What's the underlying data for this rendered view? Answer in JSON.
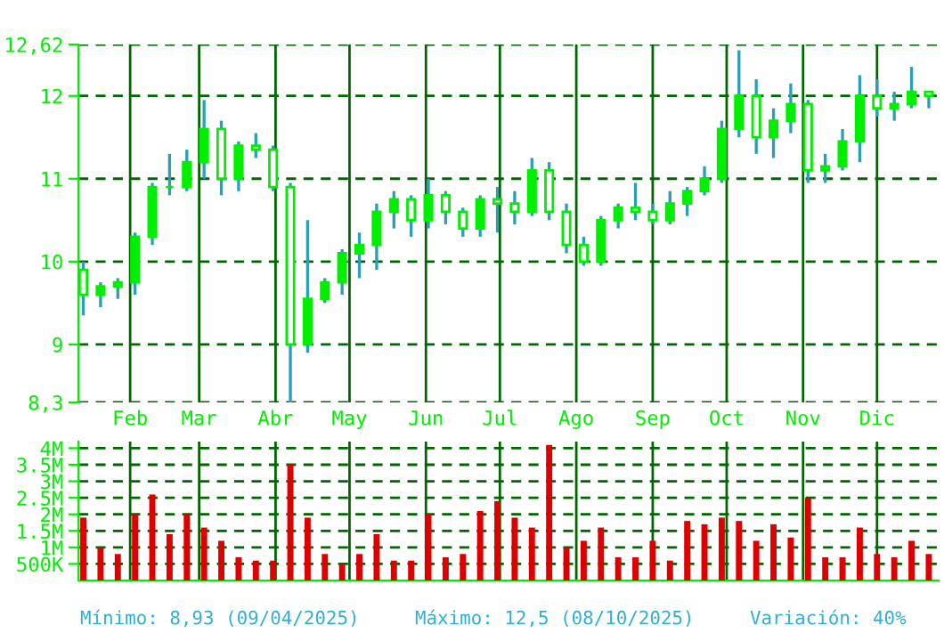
{
  "chart_data": [
    {
      "type": "candlestick",
      "color": "#00ee00",
      "x": [
        "2025-01-13",
        "2025-01-20",
        "2025-01-27",
        "2025-02-03",
        "2025-02-10",
        "2025-02-17",
        "2025-02-24",
        "2025-03-03",
        "2025-03-10",
        "2025-03-17",
        "2025-03-24",
        "2025-03-31",
        "2025-04-07",
        "2025-04-14",
        "2025-04-21",
        "2025-04-28",
        "2025-05-05",
        "2025-05-12",
        "2025-05-19",
        "2025-05-26",
        "2025-06-02",
        "2025-06-09",
        "2025-06-16",
        "2025-06-23",
        "2025-06-30",
        "2025-07-07",
        "2025-07-14",
        "2025-07-21",
        "2025-07-28",
        "2025-08-04",
        "2025-08-11",
        "2025-08-18",
        "2025-08-25",
        "2025-09-01",
        "2025-09-08",
        "2025-09-15",
        "2025-09-22",
        "2025-09-29",
        "2025-10-06",
        "2025-10-13",
        "2025-10-20",
        "2025-10-27",
        "2025-11-03",
        "2025-11-10",
        "2025-11-17",
        "2025-11-24",
        "2025-12-01",
        "2025-12-08",
        "2025-12-15",
        "2025-12-22"
      ],
      "ohlc": [
        [
          9.9,
          10.0,
          9.35,
          9.6
        ],
        [
          9.6,
          9.75,
          9.45,
          9.7
        ],
        [
          9.7,
          9.8,
          9.55,
          9.75
        ],
        [
          9.75,
          10.35,
          9.6,
          10.3
        ],
        [
          10.3,
          10.95,
          10.2,
          10.9
        ],
        [
          10.9,
          11.3,
          10.8,
          10.9
        ],
        [
          10.9,
          11.35,
          10.85,
          11.2
        ],
        [
          11.2,
          11.95,
          11.0,
          11.6
        ],
        [
          11.6,
          11.7,
          10.8,
          11.0
        ],
        [
          11.0,
          11.45,
          10.85,
          11.4
        ],
        [
          11.4,
          11.55,
          11.25,
          11.35
        ],
        [
          11.35,
          11.4,
          10.85,
          10.9
        ],
        [
          10.9,
          10.95,
          8.3,
          9.0
        ],
        [
          9.0,
          10.5,
          8.9,
          9.55
        ],
        [
          9.55,
          9.8,
          9.5,
          9.75
        ],
        [
          9.75,
          10.15,
          9.6,
          10.1
        ],
        [
          10.1,
          10.35,
          9.8,
          10.2
        ],
        [
          10.2,
          10.7,
          9.9,
          10.6
        ],
        [
          10.6,
          10.85,
          10.4,
          10.75
        ],
        [
          10.75,
          10.8,
          10.3,
          10.5
        ],
        [
          10.5,
          11.0,
          10.4,
          10.8
        ],
        [
          10.8,
          10.85,
          10.45,
          10.6
        ],
        [
          10.6,
          10.65,
          10.3,
          10.4
        ],
        [
          10.4,
          10.8,
          10.3,
          10.75
        ],
        [
          10.75,
          10.9,
          10.35,
          10.7
        ],
        [
          10.7,
          10.85,
          10.45,
          10.6
        ],
        [
          10.6,
          11.25,
          10.55,
          11.1
        ],
        [
          11.1,
          11.2,
          10.5,
          10.6
        ],
        [
          10.6,
          10.7,
          10.1,
          10.2
        ],
        [
          10.2,
          10.3,
          9.95,
          10.0
        ],
        [
          10.0,
          10.55,
          9.95,
          10.5
        ],
        [
          10.5,
          10.7,
          10.4,
          10.65
        ],
        [
          10.65,
          10.95,
          10.5,
          10.6
        ],
        [
          10.6,
          10.7,
          10.45,
          10.5
        ],
        [
          10.5,
          10.85,
          10.45,
          10.7
        ],
        [
          10.7,
          10.9,
          10.55,
          10.85
        ],
        [
          10.85,
          11.15,
          10.8,
          11.0
        ],
        [
          11.0,
          11.7,
          10.95,
          11.6
        ],
        [
          11.6,
          12.55,
          11.5,
          12.0
        ],
        [
          12.0,
          12.2,
          11.3,
          11.5
        ],
        [
          11.5,
          11.85,
          11.25,
          11.7
        ],
        [
          11.7,
          12.15,
          11.55,
          11.9
        ],
        [
          11.9,
          11.95,
          10.95,
          11.1
        ],
        [
          11.1,
          11.3,
          10.95,
          11.15
        ],
        [
          11.15,
          11.6,
          11.1,
          11.45
        ],
        [
          11.45,
          12.25,
          11.2,
          12.0
        ],
        [
          12.0,
          12.2,
          11.75,
          11.85
        ],
        [
          11.85,
          12.05,
          11.7,
          11.9
        ],
        [
          11.9,
          12.35,
          11.85,
          12.05
        ],
        [
          12.05,
          12.05,
          11.85,
          12.0
        ]
      ],
      "xlim": [
        "2025-01-11",
        "2025-12-26"
      ],
      "xticks": [
        {
          "value": "2025-02-01",
          "label": "Feb"
        },
        {
          "value": "2025-03-01",
          "label": "Mar"
        },
        {
          "value": "2025-04-01",
          "label": "Abr"
        },
        {
          "value": "2025-05-01",
          "label": "May"
        },
        {
          "value": "2025-06-01",
          "label": "Jun"
        },
        {
          "value": "2025-07-01",
          "label": "Jul"
        },
        {
          "value": "2025-08-01",
          "label": "Ago"
        },
        {
          "value": "2025-09-01",
          "label": "Sep"
        },
        {
          "value": "2025-10-01",
          "label": "Oct"
        },
        {
          "value": "2025-11-01",
          "label": "Nov"
        },
        {
          "value": "2025-12-01",
          "label": "Dic"
        }
      ],
      "ylim": [
        8.3,
        12.62
      ],
      "yticks": [
        {
          "value": 8.3,
          "label": "8,3"
        },
        9,
        10,
        11,
        12,
        {
          "value": 12.62,
          "label": "12,62"
        }
      ],
      "grid": true
    },
    {
      "type": "bar",
      "color": "#dd0000",
      "x": [
        "2025-01-13",
        "2025-01-20",
        "2025-01-27",
        "2025-02-03",
        "2025-02-10",
        "2025-02-17",
        "2025-02-24",
        "2025-03-03",
        "2025-03-10",
        "2025-03-17",
        "2025-03-24",
        "2025-03-31",
        "2025-04-07",
        "2025-04-14",
        "2025-04-21",
        "2025-04-28",
        "2025-05-05",
        "2025-05-12",
        "2025-05-19",
        "2025-05-26",
        "2025-06-02",
        "2025-06-09",
        "2025-06-16",
        "2025-06-23",
        "2025-06-30",
        "2025-07-07",
        "2025-07-14",
        "2025-07-21",
        "2025-07-28",
        "2025-08-04",
        "2025-08-11",
        "2025-08-18",
        "2025-08-25",
        "2025-09-01",
        "2025-09-08",
        "2025-09-15",
        "2025-09-22",
        "2025-09-29",
        "2025-10-06",
        "2025-10-13",
        "2025-10-20",
        "2025-10-27",
        "2025-11-03",
        "2025-11-10",
        "2025-11-17",
        "2025-11-24",
        "2025-12-01",
        "2025-12-08",
        "2025-12-15",
        "2025-12-22"
      ],
      "values": [
        1900000,
        1000000,
        800000,
        2000000,
        2600000,
        1400000,
        2000000,
        1600000,
        1200000,
        700000,
        600000,
        600000,
        3500000,
        1900000,
        800000,
        500000,
        800000,
        1400000,
        600000,
        600000,
        2000000,
        700000,
        800000,
        2100000,
        2400000,
        1900000,
        1600000,
        4100000,
        1000000,
        1200000,
        1600000,
        700000,
        700000,
        1200000,
        600000,
        1800000,
        1700000,
        1900000,
        1800000,
        1200000,
        1700000,
        1300000,
        2500000,
        700000,
        700000,
        1600000,
        800000,
        700000,
        1200000,
        800000
      ],
      "xlim": [
        "2025-01-11",
        "2025-12-26"
      ],
      "xticks": [
        {
          "value": "2025-02-01",
          "label": null
        },
        {
          "value": "2025-03-01",
          "label": null
        },
        {
          "value": "2025-04-01",
          "label": null
        },
        {
          "value": "2025-05-01",
          "label": null
        },
        {
          "value": "2025-06-01",
          "label": null
        },
        {
          "value": "2025-07-01",
          "label": null
        },
        {
          "value": "2025-08-01",
          "label": null
        },
        {
          "value": "2025-09-01",
          "label": null
        },
        {
          "value": "2025-10-01",
          "label": null
        },
        {
          "value": "2025-11-01",
          "label": null
        },
        {
          "value": "2025-12-01",
          "label": null
        }
      ],
      "ylim": [
        0,
        4200000
      ],
      "yticks": [
        {
          "value": 500000,
          "label": "500K"
        },
        {
          "value": 1000000,
          "label": "1M"
        },
        {
          "value": 1500000,
          "label": "1.5M"
        },
        {
          "value": 2000000,
          "label": "2M"
        },
        {
          "value": 2500000,
          "label": "2.5M"
        },
        {
          "value": 3000000,
          "label": "3M"
        },
        {
          "value": 3500000,
          "label": "3.5M"
        },
        {
          "value": 4000000,
          "label": "4M"
        }
      ],
      "tick_labels": "y",
      "grid": true,
      "annotations": [
        "Mínimo: 8,93 (09/04/2025)",
        "Máximo: 12,5 (08/10/2025)",
        "Variación: 40%"
      ]
    }
  ]
}
